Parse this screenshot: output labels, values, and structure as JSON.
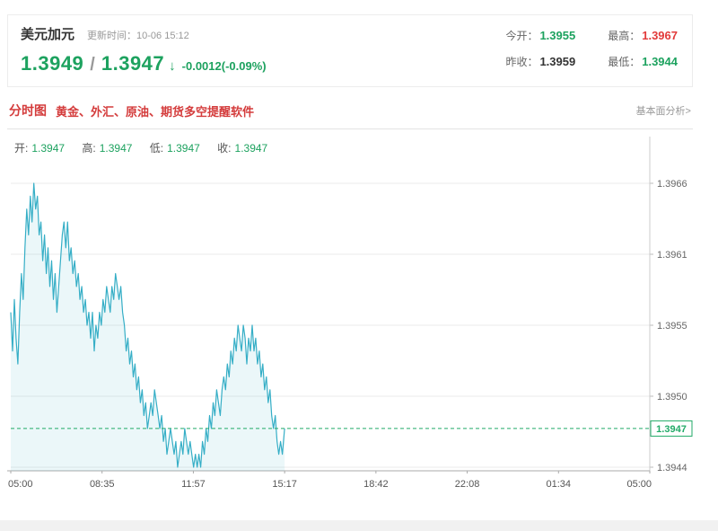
{
  "header": {
    "title": "美元加元",
    "update_label": "更新时间：10-06 15:12",
    "price_main": "1.3949",
    "price_sep": "/",
    "price_second": "1.3947",
    "arrow": "↓",
    "change": "-0.0012(-0.09%)",
    "stats": [
      {
        "label": "今开：",
        "value": "1.3955",
        "color": "green"
      },
      {
        "label": "最高：",
        "value": "1.3967",
        "color": "red"
      },
      {
        "label": "昨收：",
        "value": "1.3959",
        "color": "dark"
      },
      {
        "label": "最低：",
        "value": "1.3944",
        "color": "green"
      }
    ]
  },
  "tabbar": {
    "tab": "分时图",
    "ad": "黄金、外汇、原油、期货多空提醒软件",
    "right_link": "基本面分析>"
  },
  "legend": {
    "open_label": "开:",
    "open_value": "1.3947",
    "high_label": "高:",
    "high_value": "1.3947",
    "low_label": "低:",
    "low_value": "1.3947",
    "close_label": "收:",
    "close_value": "1.3947"
  },
  "colors": {
    "down_green": "#1da25f",
    "up_red": "#e23a3a",
    "dark_text": "#333333",
    "grey_label": "#999999",
    "line": "#35aec6",
    "fill": "rgba(60,176,200,0.10)",
    "last_price_green": "#21aa67",
    "grid": "#ebebeb",
    "axis": "#bbbbbb"
  },
  "chart_data": {
    "type": "line",
    "title": "美元加元分时图",
    "series_name": "美元加元",
    "x_unit": "minutes from 05:00",
    "x_total_minutes": 1440,
    "x_tick_labels": [
      "05:00",
      "08:35",
      "11:57",
      "15:17",
      "18:42",
      "22:08",
      "01:34",
      "05:00"
    ],
    "y_top_value": 1.3966,
    "y_bottom_value": 1.3944,
    "y_tick_labels": [
      "1.3966",
      "1.3961",
      "1.3955",
      "1.3950",
      "1.3944"
    ],
    "last_price": "1.3947",
    "line_color": "#35aec6",
    "fill_color": "rgba(60,176,200,0.10)",
    "last_price_color": "#21aa67",
    "grid": true,
    "legend_position": "top-left",
    "points": [
      [
        0,
        1.3956
      ],
      [
        4,
        1.3953
      ],
      [
        8,
        1.3957
      ],
      [
        12,
        1.3954
      ],
      [
        16,
        1.3952
      ],
      [
        20,
        1.3956
      ],
      [
        24,
        1.3959
      ],
      [
        28,
        1.3957
      ],
      [
        32,
        1.3961
      ],
      [
        36,
        1.3964
      ],
      [
        40,
        1.3962
      ],
      [
        44,
        1.3965
      ],
      [
        48,
        1.3963
      ],
      [
        52,
        1.3966
      ],
      [
        56,
        1.3964
      ],
      [
        60,
        1.3965
      ],
      [
        64,
        1.3962
      ],
      [
        68,
        1.3963
      ],
      [
        72,
        1.396
      ],
      [
        76,
        1.3962
      ],
      [
        80,
        1.3959
      ],
      [
        84,
        1.3961
      ],
      [
        88,
        1.3958
      ],
      [
        92,
        1.396
      ],
      [
        96,
        1.3957
      ],
      [
        100,
        1.3959
      ],
      [
        104,
        1.3956
      ],
      [
        108,
        1.3958
      ],
      [
        112,
        1.396
      ],
      [
        116,
        1.3962
      ],
      [
        120,
        1.3963
      ],
      [
        124,
        1.3961
      ],
      [
        128,
        1.3963
      ],
      [
        132,
        1.396
      ],
      [
        136,
        1.3961
      ],
      [
        140,
        1.3959
      ],
      [
        144,
        1.396
      ],
      [
        148,
        1.3958
      ],
      [
        152,
        1.3959
      ],
      [
        156,
        1.3957
      ],
      [
        160,
        1.3958
      ],
      [
        164,
        1.3956
      ],
      [
        168,
        1.3957
      ],
      [
        172,
        1.3955
      ],
      [
        176,
        1.3956
      ],
      [
        180,
        1.3954
      ],
      [
        184,
        1.3956
      ],
      [
        188,
        1.3953
      ],
      [
        192,
        1.3955
      ],
      [
        196,
        1.3954
      ],
      [
        200,
        1.3956
      ],
      [
        204,
        1.3955
      ],
      [
        208,
        1.3957
      ],
      [
        212,
        1.3956
      ],
      [
        216,
        1.3958
      ],
      [
        220,
        1.3957
      ],
      [
        224,
        1.3956
      ],
      [
        228,
        1.3958
      ],
      [
        232,
        1.3957
      ],
      [
        236,
        1.3959
      ],
      [
        240,
        1.3958
      ],
      [
        244,
        1.3957
      ],
      [
        248,
        1.3958
      ],
      [
        252,
        1.3956
      ],
      [
        256,
        1.3955
      ],
      [
        260,
        1.3953
      ],
      [
        264,
        1.3954
      ],
      [
        268,
        1.3952
      ],
      [
        272,
        1.3953
      ],
      [
        276,
        1.3951
      ],
      [
        280,
        1.3952
      ],
      [
        284,
        1.395
      ],
      [
        288,
        1.3951
      ],
      [
        292,
        1.3949
      ],
      [
        296,
        1.395
      ],
      [
        300,
        1.3948
      ],
      [
        304,
        1.3949
      ],
      [
        308,
        1.3947
      ],
      [
        312,
        1.3948
      ],
      [
        316,
        1.3949
      ],
      [
        320,
        1.3948
      ],
      [
        324,
        1.395
      ],
      [
        328,
        1.3949
      ],
      [
        332,
        1.3948
      ],
      [
        336,
        1.3947
      ],
      [
        340,
        1.3948
      ],
      [
        344,
        1.3946
      ],
      [
        348,
        1.3947
      ],
      [
        352,
        1.3945
      ],
      [
        356,
        1.3946
      ],
      [
        360,
        1.3947
      ],
      [
        364,
        1.3946
      ],
      [
        368,
        1.3945
      ],
      [
        372,
        1.3946
      ],
      [
        376,
        1.3944
      ],
      [
        380,
        1.3945
      ],
      [
        384,
        1.3946
      ],
      [
        388,
        1.3945
      ],
      [
        392,
        1.3947
      ],
      [
        396,
        1.3946
      ],
      [
        400,
        1.3945
      ],
      [
        404,
        1.3946
      ],
      [
        408,
        1.3945
      ],
      [
        412,
        1.3944
      ],
      [
        416,
        1.3945
      ],
      [
        420,
        1.3944
      ],
      [
        424,
        1.3945
      ],
      [
        428,
        1.3944
      ],
      [
        432,
        1.3946
      ],
      [
        436,
        1.3945
      ],
      [
        440,
        1.3947
      ],
      [
        444,
        1.3946
      ],
      [
        448,
        1.3948
      ],
      [
        452,
        1.3947
      ],
      [
        456,
        1.3949
      ],
      [
        460,
        1.3948
      ],
      [
        464,
        1.395
      ],
      [
        468,
        1.3949
      ],
      [
        472,
        1.3948
      ],
      [
        476,
        1.395
      ],
      [
        480,
        1.3951
      ],
      [
        484,
        1.395
      ],
      [
        488,
        1.3952
      ],
      [
        492,
        1.3951
      ],
      [
        496,
        1.3953
      ],
      [
        500,
        1.3952
      ],
      [
        504,
        1.3954
      ],
      [
        508,
        1.3953
      ],
      [
        512,
        1.3955
      ],
      [
        516,
        1.3954
      ],
      [
        520,
        1.3953
      ],
      [
        524,
        1.3955
      ],
      [
        528,
        1.3954
      ],
      [
        532,
        1.3952
      ],
      [
        536,
        1.3954
      ],
      [
        540,
        1.3953
      ],
      [
        544,
        1.3955
      ],
      [
        548,
        1.3953
      ],
      [
        552,
        1.3954
      ],
      [
        556,
        1.3952
      ],
      [
        560,
        1.3953
      ],
      [
        564,
        1.3951
      ],
      [
        568,
        1.3952
      ],
      [
        572,
        1.395
      ],
      [
        576,
        1.3951
      ],
      [
        580,
        1.3949
      ],
      [
        584,
        1.395
      ],
      [
        588,
        1.3948
      ],
      [
        592,
        1.3947
      ],
      [
        596,
        1.3948
      ],
      [
        600,
        1.3946
      ],
      [
        604,
        1.3945
      ],
      [
        608,
        1.3946
      ],
      [
        612,
        1.3945
      ],
      [
        617,
        1.3947
      ]
    ]
  }
}
